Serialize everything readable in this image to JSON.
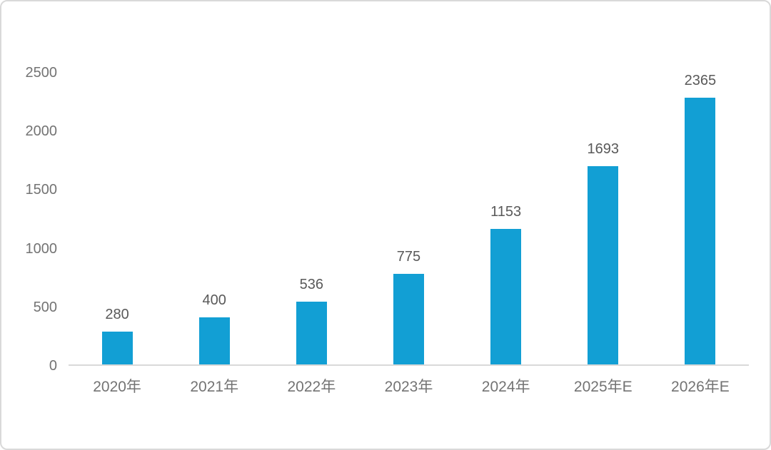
{
  "colors": {
    "bar": "#129fd4",
    "axis_line": "#d9d9d9",
    "tick_label": "#737373",
    "value_label": "#595959",
    "background": "#ffffff",
    "border": "#d9d9d9"
  },
  "chart_data": {
    "type": "bar",
    "title": "",
    "xlabel": "",
    "ylabel": "",
    "categories": [
      "2020年",
      "2021年",
      "2022年",
      "2023年",
      "2024年",
      "2025年E",
      "2026年E"
    ],
    "values": [
      280,
      400,
      536,
      775,
      1153,
      1693,
      2365
    ],
    "value_labels": [
      "280",
      "400",
      "536",
      "775",
      "1153",
      "1693",
      "2365"
    ],
    "ylim": [
      0,
      2500
    ],
    "yticks": [
      0,
      500,
      1000,
      1500,
      2000,
      2500
    ],
    "grid": false,
    "legend": null,
    "bar_color": "#129fd4"
  }
}
